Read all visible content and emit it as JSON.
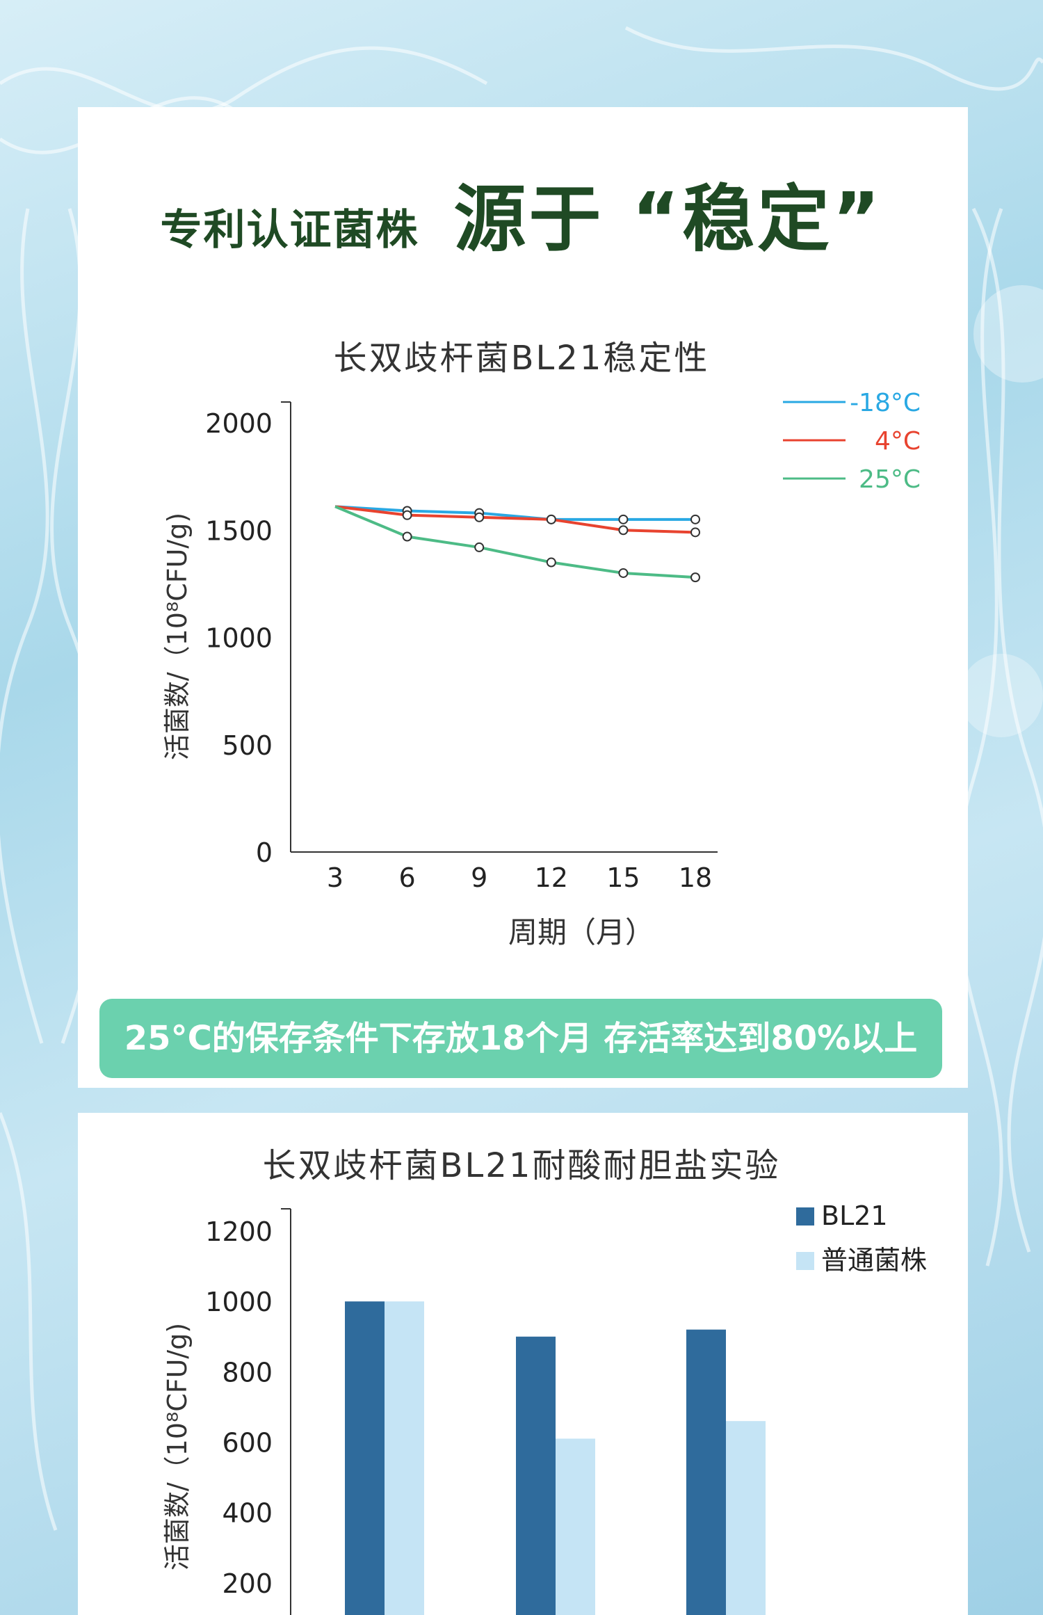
{
  "header": {
    "subtitle": "专利认证菌株",
    "title": "源于 “稳定”"
  },
  "banner": {
    "text": "25°C的保存条件下存放18个月 存活率达到80%以上"
  },
  "colors": {
    "dark_green": "#1f4a24",
    "banner_green": "#6bd1ae",
    "series_blue": "#29a8e3",
    "series_red": "#e8432f",
    "series_green": "#4dbb86",
    "bar_dark": "#2f6b9c",
    "bar_light": "#c5e4f5"
  },
  "chart_data": [
    {
      "type": "line",
      "title": "长双歧杆菌BL21稳定性",
      "xlabel": "周期（月）",
      "ylabel": "活菌数/（10⁸CFU/g)",
      "x": [
        3,
        6,
        9,
        12,
        15,
        18
      ],
      "xticks": [
        "3",
        "6",
        "9",
        "12",
        "15",
        "18"
      ],
      "ylim": [
        0,
        2000
      ],
      "yticks": [
        "0",
        "500",
        "1000",
        "1500",
        "2000"
      ],
      "legend_position": "top-right",
      "grid": false,
      "series": [
        {
          "name": "-18°C",
          "color": "#29a8e3",
          "values": [
            1610,
            1590,
            1580,
            1550,
            1550,
            1550
          ]
        },
        {
          "name": "4°C",
          "color": "#e8432f",
          "values": [
            1610,
            1570,
            1560,
            1550,
            1500,
            1490
          ]
        },
        {
          "name": "25°C",
          "color": "#4dbb86",
          "values": [
            1610,
            1470,
            1420,
            1350,
            1300,
            1280
          ]
        }
      ]
    },
    {
      "type": "bar",
      "title": "长双歧杆菌BL21耐酸耐胆盐实验",
      "ylabel": "活菌数/（10⁸CFU/g)",
      "categories": [
        "",
        "",
        ""
      ],
      "ylim": [
        0,
        1200
      ],
      "yticks": [
        "200",
        "400",
        "600",
        "800",
        "1000",
        "1200"
      ],
      "legend_position": "top-right",
      "grid": false,
      "series": [
        {
          "name": "BL21",
          "color": "#2f6b9c",
          "values": [
            1000,
            900,
            920
          ]
        },
        {
          "name": "普通菌株",
          "color": "#c5e4f5",
          "values": [
            1000,
            610,
            660
          ]
        }
      ]
    }
  ]
}
